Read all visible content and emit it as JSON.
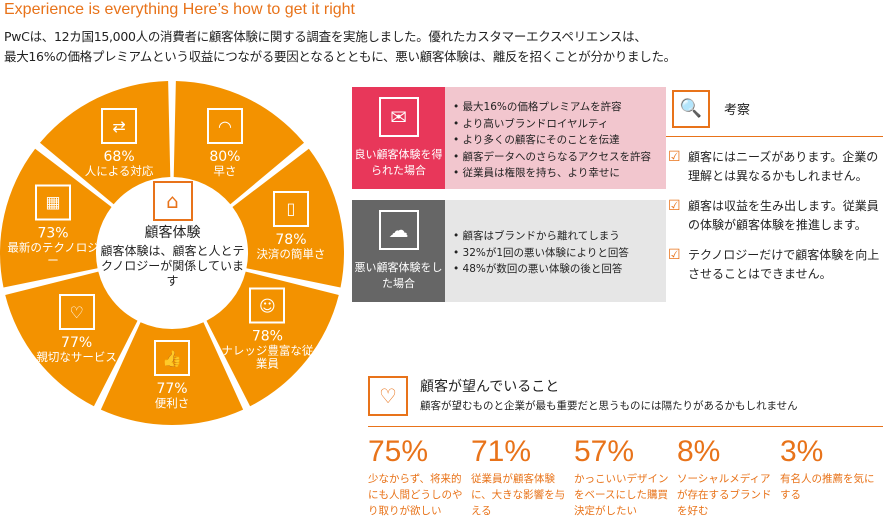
{
  "title": "Experience is everything Here’s how to get it right",
  "intro": [
    "PwCは、12カ国15,000人の消費者に顧客体験に関する調査を実施しました。優れたカスタマーエクスペリエンスは、",
    "最大16%の価格プレミアムという収益につながる要因となるとともに、悪い顧客体験は、離反を招くことが分かりました。"
  ],
  "colors": {
    "orange": "#f39200",
    "accent": "#e8731a",
    "good": "#e8375a",
    "good_bg": "#f2c6ce",
    "bad": "#666666",
    "bad_bg": "#e6e6e6"
  },
  "pie": {
    "center_title": "顧客体験",
    "center_text": "顧客体験は、顧客と人とテクノロジーが関係しています",
    "center_icon": "storefront-icon",
    "segments": [
      {
        "pct": "80%",
        "label": "早さ",
        "icon": "speedometer-icon",
        "glyph": "◠"
      },
      {
        "pct": "78%",
        "label": "決済の簡単さ",
        "icon": "card-payment-icon",
        "glyph": "▯"
      },
      {
        "pct": "78%",
        "label": "ナレッジ豊富な従業員",
        "icon": "people-icon",
        "glyph": "☺"
      },
      {
        "pct": "77%",
        "label": "便利さ",
        "icon": "thumbs-up-icon",
        "glyph": "👍"
      },
      {
        "pct": "77%",
        "label": "親切なサービス",
        "icon": "heart-hands-icon",
        "glyph": "♡"
      },
      {
        "pct": "73%",
        "label": "最新のテクノロジー",
        "icon": "smartphone-icon",
        "glyph": "▦"
      },
      {
        "pct": "68%",
        "label": "人による対応",
        "icon": "person-service-icon",
        "glyph": "⇄"
      }
    ]
  },
  "good": {
    "label": "良い顧客体験を得られた場合",
    "icon": "handshake-icon",
    "items": [
      "最大16%の価格プレミアムを許容",
      "より高いブランドロイヤルティ",
      "より多くの顧客にそのことを伝達",
      "顧客データへのさらなるアクセスを許容",
      "従業員は権限を持ち、より幸せに"
    ]
  },
  "bad": {
    "label": "悪い顧客体験をした場合",
    "icon": "storm-cloud-icon",
    "items": [
      "顧客はブランドから離れてしまう",
      "32%が1回の悪い体験によりと回答",
      "48%が数回の悪い体験の後と回答"
    ]
  },
  "insights": {
    "title": "考察",
    "icon": "magnifier-chart-icon",
    "items": [
      "顧客にはニーズがあります。企業の理解とは異なるかもしれません。",
      "顧客は収益を生み出します。従業員の体験が顧客体験を推進します。",
      "テクノロジーだけで顧客体験を向上させることはできません。"
    ]
  },
  "wants": {
    "title": "顧客が望んでいること",
    "subtitle": "顧客が望むものと企業が最も重要だと思うものには隔たりがあるかもしれません",
    "icon": "heart-hand-icon",
    "stats": [
      {
        "value": "75%",
        "text": "少なからず、将来的にも人間どうしのやり取りが欲しい"
      },
      {
        "value": "71%",
        "text": "従業員が顧客体験に、大きな影響を与える"
      },
      {
        "value": "57%",
        "text": "かっこいいデザインをベースにした購買決定がしたい"
      },
      {
        "value": "8%",
        "text": "ソーシャルメディアが存在するブランドを好む"
      },
      {
        "value": "3%",
        "text": "有名人の推薦を気にする"
      }
    ]
  }
}
